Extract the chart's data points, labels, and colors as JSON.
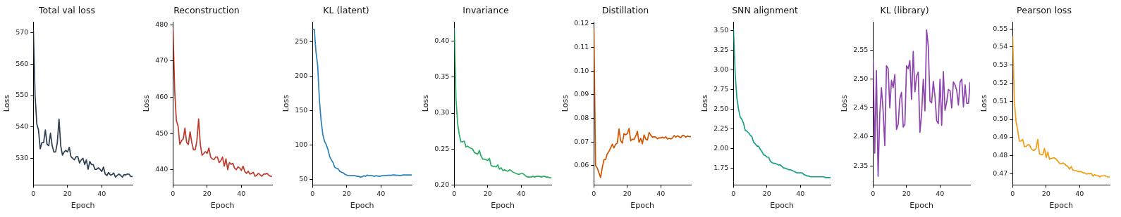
{
  "chart_data": [
    {
      "type": "line",
      "title": "Total val loss",
      "xlabel": "Epoch",
      "ylabel": "Loss",
      "xlim": [
        0,
        58
      ],
      "xticks": [
        0,
        20,
        40
      ],
      "ylim": [
        521.5,
        573.5
      ],
      "yticks": [
        530,
        540,
        550,
        560,
        570
      ],
      "x": [
        0,
        1,
        2,
        3,
        4,
        5,
        6,
        7,
        8,
        9,
        10,
        11,
        12,
        13,
        14,
        15,
        16,
        17,
        18,
        19,
        20,
        21,
        22,
        23,
        24,
        25,
        26,
        27,
        28,
        29,
        30,
        31,
        32,
        33,
        34,
        35,
        36,
        37,
        38,
        39,
        40,
        41,
        42,
        43,
        44,
        45,
        46,
        47,
        48,
        49,
        50,
        51,
        52,
        53,
        54,
        55,
        56,
        57,
        58
      ],
      "series": [
        {
          "color": "#2c3e50",
          "values": [
            571,
            550,
            541,
            539,
            533,
            535,
            535,
            539,
            534.5,
            534,
            538,
            534,
            532,
            532,
            535,
            542.5,
            534,
            531,
            532,
            532.5,
            532,
            533.5,
            530.5,
            530,
            529.5,
            530.5,
            530.5,
            528.5,
            529.5,
            530,
            528,
            529.5,
            526.5,
            529,
            528,
            528,
            526.5,
            526.5,
            527,
            526.5,
            525.8,
            527.2,
            525,
            524.5,
            525.5,
            524.7,
            524.8,
            525.3,
            524,
            524.5,
            525,
            524.6,
            524,
            524.8,
            524.7,
            525,
            524.9,
            524.2,
            524.2
          ]
        }
      ]
    },
    {
      "type": "line",
      "title": "Reconstruction",
      "xlabel": "Epoch",
      "ylabel": "Loss",
      "xlim": [
        0,
        58
      ],
      "xticks": [
        0,
        20,
        40
      ],
      "ylim": [
        435.8,
        480.8
      ],
      "yticks": [
        440,
        450,
        460,
        470,
        480
      ],
      "x": [
        0,
        1,
        2,
        3,
        4,
        5,
        6,
        7,
        8,
        9,
        10,
        11,
        12,
        13,
        14,
        15,
        16,
        17,
        18,
        19,
        20,
        21,
        22,
        23,
        24,
        25,
        26,
        27,
        28,
        29,
        30,
        31,
        32,
        33,
        34,
        35,
        36,
        37,
        38,
        39,
        40,
        41,
        42,
        43,
        44,
        45,
        46,
        47,
        48,
        49,
        50,
        51,
        52,
        53,
        54,
        55,
        56,
        57,
        58
      ],
      "series": [
        {
          "color": "#c0392b",
          "values": [
            479,
            462,
            453.5,
            452,
            447,
            448,
            448.5,
            451.5,
            447.5,
            447,
            450.5,
            447.5,
            445.5,
            445.5,
            448,
            454,
            447,
            444,
            444.5,
            445,
            444.5,
            446,
            443.5,
            443,
            442.8,
            443.5,
            443.5,
            442,
            442.5,
            443.5,
            441,
            443,
            440,
            442,
            441.5,
            441.8,
            440.5,
            440,
            440.8,
            440.5,
            439.8,
            441,
            439.5,
            439,
            439.6,
            438.8,
            439,
            439.3,
            438.2,
            438.5,
            439,
            438.6,
            438.2,
            438.8,
            438.8,
            439,
            438.5,
            438.2,
            438.2
          ]
        }
      ]
    },
    {
      "type": "line",
      "title": "KL (latent)",
      "xlabel": "Epoch",
      "ylabel": "Loss",
      "xlim": [
        0,
        58
      ],
      "xticks": [
        0,
        20,
        40
      ],
      "ylim": [
        41.5,
        278.9
      ],
      "yticks": [
        50,
        100,
        150,
        200,
        250
      ],
      "x": [
        0,
        1,
        2,
        3,
        4,
        5,
        6,
        7,
        8,
        9,
        10,
        11,
        12,
        13,
        14,
        15,
        16,
        17,
        18,
        19,
        20,
        21,
        22,
        23,
        24,
        25,
        26,
        27,
        28,
        29,
        30,
        31,
        32,
        33,
        34,
        35,
        36,
        37,
        38,
        39,
        40,
        41,
        42,
        43,
        44,
        45,
        46,
        47,
        48,
        49,
        50,
        51,
        52,
        53,
        54,
        55,
        56,
        57,
        58
      ],
      "series": [
        {
          "color": "#2980b9",
          "values": [
            268,
            268,
            235,
            215,
            165,
            135,
            115,
            105,
            100,
            93,
            83,
            78,
            74,
            67,
            66,
            65,
            61,
            60,
            59,
            57,
            56,
            55,
            55,
            55,
            55,
            55,
            54,
            54,
            53,
            53.5,
            55,
            54,
            56,
            55,
            55,
            55,
            54,
            55,
            54.5,
            54,
            54.5,
            55,
            55,
            55,
            55.5,
            55.5,
            55.5,
            56,
            56,
            55.5,
            55.5,
            55,
            55.5,
            56,
            56,
            56,
            56,
            56,
            56
          ]
        }
      ]
    },
    {
      "type": "line",
      "title": "Invariance",
      "xlabel": "Epoch",
      "ylabel": "Loss",
      "xlim": [
        0,
        58
      ],
      "xticks": [
        0,
        20,
        40
      ],
      "ylim": [
        0.2,
        0.427
      ],
      "yticks": [
        {
          "value": 0.2,
          "label": "0.20"
        },
        {
          "value": 0.25,
          "label": "0.25"
        },
        {
          "value": 0.3,
          "label": "0.30"
        },
        {
          "value": 0.35,
          "label": "0.35"
        },
        {
          "value": 0.4,
          "label": "0.40"
        }
      ],
      "x": [
        0,
        1,
        2,
        3,
        4,
        5,
        6,
        7,
        8,
        9,
        10,
        11,
        12,
        13,
        14,
        15,
        16,
        17,
        18,
        19,
        20,
        21,
        22,
        23,
        24,
        25,
        26,
        27,
        28,
        29,
        30,
        31,
        32,
        33,
        34,
        35,
        36,
        37,
        38,
        39,
        40,
        41,
        42,
        43,
        44,
        45,
        46,
        47,
        48,
        49,
        50,
        51,
        52,
        53,
        54,
        55,
        56,
        57,
        58
      ],
      "series": [
        {
          "color": "#27ae60",
          "values": [
            0.418,
            0.32,
            0.285,
            0.27,
            0.26,
            0.26,
            0.261,
            0.253,
            0.254,
            0.252,
            0.251,
            0.25,
            0.245,
            0.244,
            0.243,
            0.248,
            0.24,
            0.236,
            0.236,
            0.235,
            0.234,
            0.237,
            0.227,
            0.226,
            0.226,
            0.225,
            0.228,
            0.222,
            0.224,
            0.22,
            0.221,
            0.22,
            0.219,
            0.221,
            0.22,
            0.218,
            0.217,
            0.216,
            0.215,
            0.215,
            0.216,
            0.216,
            0.214,
            0.212,
            0.211,
            0.211,
            0.211,
            0.212,
            0.211,
            0.212,
            0.212,
            0.212,
            0.211,
            0.212,
            0.212,
            0.211,
            0.211,
            0.21,
            0.21
          ]
        }
      ]
    },
    {
      "type": "line",
      "title": "Distillation",
      "xlabel": "Epoch",
      "ylabel": "Loss",
      "xlim": [
        0,
        58
      ],
      "xticks": [
        0,
        20,
        40
      ],
      "ylim": [
        0.0518,
        0.1208
      ],
      "yticks": [
        {
          "value": 0.06,
          "label": "0.06"
        },
        {
          "value": 0.07,
          "label": "0.07"
        },
        {
          "value": 0.08,
          "label": "0.08"
        },
        {
          "value": 0.09,
          "label": "0.09"
        },
        {
          "value": 0.1,
          "label": "0.10"
        },
        {
          "value": 0.11,
          "label": "0.11"
        },
        {
          "value": 0.12,
          "label": "0.12"
        }
      ],
      "x": [
        0,
        1,
        2,
        3,
        4,
        5,
        6,
        7,
        8,
        9,
        10,
        11,
        12,
        13,
        14,
        15,
        16,
        17,
        18,
        19,
        20,
        21,
        22,
        23,
        24,
        25,
        26,
        27,
        28,
        29,
        30,
        31,
        32,
        33,
        34,
        35,
        36,
        37,
        38,
        39,
        40,
        41,
        42,
        43,
        44,
        45,
        46,
        47,
        48,
        49,
        50,
        51,
        52,
        53,
        54,
        55,
        56,
        57,
        58
      ],
      "series": [
        {
          "color": "#d35400",
          "values": [
            0.118,
            0.06,
            0.059,
            0.057,
            0.055,
            0.059,
            0.0625,
            0.0625,
            0.065,
            0.066,
            0.0675,
            0.069,
            0.0675,
            0.069,
            0.0695,
            0.0755,
            0.0705,
            0.0695,
            0.0735,
            0.073,
            0.0735,
            0.0757,
            0.0705,
            0.0712,
            0.071,
            0.0725,
            0.0745,
            0.0698,
            0.0715,
            0.0692,
            0.073,
            0.0712,
            0.0708,
            0.074,
            0.0728,
            0.072,
            0.0722,
            0.072,
            0.0713,
            0.0718,
            0.0717,
            0.072,
            0.0716,
            0.0722,
            0.0712,
            0.0715,
            0.0712,
            0.0718,
            0.0727,
            0.072,
            0.0726,
            0.0722,
            0.0718,
            0.0728,
            0.0726,
            0.072,
            0.0725,
            0.0722,
            0.0723
          ]
        }
      ]
    },
    {
      "type": "line",
      "title": "SNN alignment",
      "xlabel": "Epoch",
      "ylabel": "Loss",
      "xlim": [
        0,
        58
      ],
      "xticks": [
        0,
        20,
        40
      ],
      "ylim": [
        1.536,
        3.61
      ],
      "yticks": [
        1.75,
        {
          "value": 2,
          "label": "2.00"
        },
        2.25,
        {
          "value": 2.5,
          "label": "2.50"
        },
        2.75,
        {
          "value": 3,
          "label": "3.00"
        },
        3.25,
        {
          "value": 3.5,
          "label": "3.50"
        }
      ],
      "x": [
        0,
        1,
        2,
        3,
        4,
        5,
        6,
        7,
        8,
        9,
        10,
        11,
        12,
        13,
        14,
        15,
        16,
        17,
        18,
        19,
        20,
        21,
        22,
        23,
        24,
        25,
        26,
        27,
        28,
        29,
        30,
        31,
        32,
        33,
        34,
        35,
        36,
        37,
        38,
        39,
        40,
        41,
        42,
        43,
        44,
        45,
        46,
        47,
        48,
        49,
        50,
        51,
        52,
        53,
        54,
        55,
        56,
        57,
        58
      ],
      "series": [
        {
          "color": "#16a085",
          "values": [
            3.52,
            2.95,
            2.65,
            2.5,
            2.4,
            2.37,
            2.32,
            2.23,
            2.22,
            2.2,
            2.17,
            2.15,
            2.08,
            2.06,
            2.03,
            2.03,
            1.99,
            1.96,
            1.92,
            1.91,
            1.89,
            1.89,
            1.84,
            1.82,
            1.81,
            1.81,
            1.8,
            1.79,
            1.79,
            1.77,
            1.75,
            1.75,
            1.74,
            1.73,
            1.73,
            1.72,
            1.71,
            1.7,
            1.69,
            1.69,
            1.69,
            1.69,
            1.67,
            1.66,
            1.65,
            1.65,
            1.64,
            1.64,
            1.64,
            1.64,
            1.64,
            1.64,
            1.64,
            1.64,
            1.64,
            1.63,
            1.63,
            1.63,
            1.63
          ]
        }
      ]
    },
    {
      "type": "line",
      "title": "KL (library)",
      "xlabel": "Epoch",
      "ylabel": "Loss",
      "xlim": [
        0,
        58
      ],
      "xticks": [
        0,
        20,
        40
      ],
      "ylim": [
        2.317,
        2.599
      ],
      "yticks": [
        2.35,
        {
          "value": 2.4,
          "label": "2.40"
        },
        2.45,
        {
          "value": 2.5,
          "label": "2.50"
        },
        2.55
      ],
      "x": [
        0,
        1,
        2,
        3,
        4,
        5,
        6,
        7,
        8,
        9,
        10,
        11,
        12,
        13,
        14,
        15,
        16,
        17,
        18,
        19,
        20,
        21,
        22,
        23,
        24,
        25,
        26,
        27,
        28,
        29,
        30,
        31,
        32,
        33,
        34,
        35,
        36,
        37,
        38,
        39,
        40,
        41,
        42,
        43,
        44,
        45,
        46,
        47,
        48,
        49,
        50,
        51,
        52,
        53,
        54,
        55,
        56,
        57,
        58
      ],
      "series": [
        {
          "color": "#8e44ad",
          "values": [
            2.535,
            2.372,
            2.515,
            2.332,
            2.44,
            2.485,
            2.445,
            2.385,
            2.523,
            2.518,
            2.45,
            2.498,
            2.485,
            2.508,
            2.413,
            2.422,
            2.466,
            2.477,
            2.417,
            2.422,
            2.523,
            2.518,
            2.532,
            2.465,
            2.548,
            2.478,
            2.505,
            2.512,
            2.408,
            2.44,
            2.5,
            2.445,
            2.585,
            2.557,
            2.462,
            2.459,
            2.496,
            2.47,
            2.428,
            2.423,
            2.5,
            2.42,
            2.513,
            2.446,
            2.46,
            2.482,
            2.48,
            2.45,
            2.495,
            2.49,
            2.48,
            2.455,
            2.495,
            2.5,
            2.452,
            2.49,
            2.458,
            2.458,
            2.495
          ]
        }
      ]
    },
    {
      "type": "line",
      "title": "Pearson loss",
      "xlabel": "Epoch",
      "ylabel": "Loss",
      "xlim": [
        0,
        58
      ],
      "xticks": [
        0,
        20,
        40
      ],
      "ylim": [
        0.4638,
        0.5539
      ],
      "yticks": [
        0.47,
        0.48,
        0.49,
        {
          "value": 0.5,
          "label": "0.50"
        },
        0.51,
        0.52,
        0.53,
        0.54,
        0.55
      ],
      "x": [
        0,
        1,
        2,
        3,
        4,
        5,
        6,
        7,
        8,
        9,
        10,
        11,
        12,
        13,
        14,
        15,
        16,
        17,
        18,
        19,
        20,
        21,
        22,
        23,
        24,
        25,
        26,
        27,
        28,
        29,
        30,
        31,
        32,
        33,
        34,
        35,
        36,
        37,
        38,
        39,
        40,
        41,
        42,
        43,
        44,
        45,
        46,
        47,
        48,
        49,
        50,
        51,
        52,
        53,
        54,
        55,
        56,
        57,
        58
      ],
      "series": [
        {
          "color": "#f39c12",
          "values": [
            0.546,
            0.51,
            0.499,
            0.494,
            0.488,
            0.488,
            0.489,
            0.485,
            0.485,
            0.486,
            0.486,
            0.484,
            0.483,
            0.483,
            0.484,
            0.489,
            0.481,
            0.4805,
            0.4805,
            0.484,
            0.479,
            0.482,
            0.478,
            0.4785,
            0.4787,
            0.4787,
            0.478,
            0.477,
            0.4757,
            0.4755,
            0.476,
            0.4755,
            0.4745,
            0.474,
            0.4725,
            0.474,
            0.472,
            0.4718,
            0.4717,
            0.4712,
            0.4713,
            0.4712,
            0.4705,
            0.4705,
            0.4698,
            0.47,
            0.47,
            0.4702,
            0.4687,
            0.4695,
            0.469,
            0.469,
            0.4683,
            0.4688,
            0.4688,
            0.469,
            0.4685,
            0.4683,
            0.4682
          ]
        }
      ]
    }
  ]
}
